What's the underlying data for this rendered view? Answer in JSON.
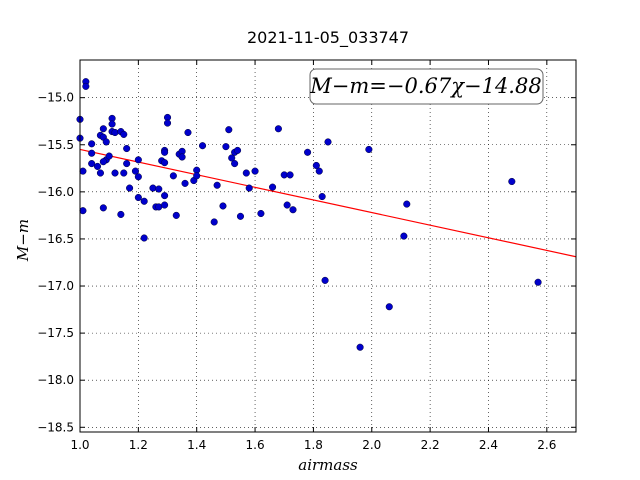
{
  "chart_data": {
    "type": "scatter",
    "title": "2021-11-05_033747",
    "xlabel": "airmass",
    "ylabel": "M−m",
    "xlim": [
      1.0,
      2.7
    ],
    "ylim": [
      -18.55,
      -14.6
    ],
    "y_inverted": true,
    "grid": true,
    "x_ticks": [
      "1.0",
      "1.2",
      "1.4",
      "1.6",
      "1.8",
      "2.0",
      "2.2",
      "2.4",
      "2.6"
    ],
    "x_tick_values": [
      1.0,
      1.2,
      1.4,
      1.6,
      1.8,
      2.0,
      2.2,
      2.4,
      2.6
    ],
    "y_ticks": [
      "−15.0",
      "−15.5",
      "−16.0",
      "−16.5",
      "−17.0",
      "−17.5",
      "−18.0",
      "−18.5"
    ],
    "y_tick_values": [
      -15.0,
      -15.5,
      -16.0,
      -16.5,
      -17.0,
      -17.5,
      -18.0,
      -18.5
    ],
    "fit_label": "M−m=−0.67χ−14.88",
    "fit": {
      "slope": -0.67,
      "intercept": -14.88,
      "color": "#ff0000"
    },
    "point_color": "#0000cc",
    "points": [
      {
        "x": 1.0,
        "y": -15.23
      },
      {
        "x": 1.0,
        "y": -15.43
      },
      {
        "x": 1.02,
        "y": -14.83
      },
      {
        "x": 1.02,
        "y": -14.88
      },
      {
        "x": 1.01,
        "y": -15.78
      },
      {
        "x": 1.01,
        "y": -16.2
      },
      {
        "x": 1.04,
        "y": -15.49
      },
      {
        "x": 1.04,
        "y": -15.59
      },
      {
        "x": 1.04,
        "y": -15.7
      },
      {
        "x": 1.06,
        "y": -15.73
      },
      {
        "x": 1.07,
        "y": -15.8
      },
      {
        "x": 1.07,
        "y": -15.4
      },
      {
        "x": 1.08,
        "y": -15.33
      },
      {
        "x": 1.08,
        "y": -15.42
      },
      {
        "x": 1.09,
        "y": -15.47
      },
      {
        "x": 1.09,
        "y": -15.66
      },
      {
        "x": 1.08,
        "y": -15.68
      },
      {
        "x": 1.08,
        "y": -16.17
      },
      {
        "x": 1.1,
        "y": -15.62
      },
      {
        "x": 1.11,
        "y": -15.22
      },
      {
        "x": 1.11,
        "y": -15.28
      },
      {
        "x": 1.11,
        "y": -15.36
      },
      {
        "x": 1.12,
        "y": -15.37
      },
      {
        "x": 1.12,
        "y": -15.8
      },
      {
        "x": 1.14,
        "y": -15.36
      },
      {
        "x": 1.15,
        "y": -15.39
      },
      {
        "x": 1.14,
        "y": -16.24
      },
      {
        "x": 1.15,
        "y": -15.8
      },
      {
        "x": 1.16,
        "y": -15.7
      },
      {
        "x": 1.16,
        "y": -15.54
      },
      {
        "x": 1.17,
        "y": -15.96
      },
      {
        "x": 1.19,
        "y": -15.78
      },
      {
        "x": 1.2,
        "y": -15.66
      },
      {
        "x": 1.2,
        "y": -15.84
      },
      {
        "x": 1.2,
        "y": -16.06
      },
      {
        "x": 1.22,
        "y": -16.1
      },
      {
        "x": 1.22,
        "y": -16.49
      },
      {
        "x": 1.25,
        "y": -15.96
      },
      {
        "x": 1.26,
        "y": -16.16
      },
      {
        "x": 1.27,
        "y": -15.97
      },
      {
        "x": 1.27,
        "y": -16.16
      },
      {
        "x": 1.28,
        "y": -15.67
      },
      {
        "x": 1.29,
        "y": -15.56
      },
      {
        "x": 1.29,
        "y": -15.58
      },
      {
        "x": 1.29,
        "y": -15.69
      },
      {
        "x": 1.29,
        "y": -16.14
      },
      {
        "x": 1.29,
        "y": -16.04
      },
      {
        "x": 1.3,
        "y": -15.21
      },
      {
        "x": 1.3,
        "y": -15.27
      },
      {
        "x": 1.32,
        "y": -15.83
      },
      {
        "x": 1.33,
        "y": -16.25
      },
      {
        "x": 1.34,
        "y": -15.6
      },
      {
        "x": 1.35,
        "y": -15.57
      },
      {
        "x": 1.35,
        "y": -15.63
      },
      {
        "x": 1.36,
        "y": -15.91
      },
      {
        "x": 1.37,
        "y": -15.37
      },
      {
        "x": 1.39,
        "y": -15.88
      },
      {
        "x": 1.4,
        "y": -15.77
      },
      {
        "x": 1.4,
        "y": -15.83
      },
      {
        "x": 1.42,
        "y": -15.51
      },
      {
        "x": 1.46,
        "y": -16.32
      },
      {
        "x": 1.47,
        "y": -15.93
      },
      {
        "x": 1.49,
        "y": -16.15
      },
      {
        "x": 1.5,
        "y": -15.52
      },
      {
        "x": 1.51,
        "y": -15.34
      },
      {
        "x": 1.52,
        "y": -15.64
      },
      {
        "x": 1.53,
        "y": -15.7
      },
      {
        "x": 1.53,
        "y": -15.58
      },
      {
        "x": 1.54,
        "y": -15.56
      },
      {
        "x": 1.55,
        "y": -16.26
      },
      {
        "x": 1.57,
        "y": -15.8
      },
      {
        "x": 1.58,
        "y": -15.96
      },
      {
        "x": 1.6,
        "y": -15.78
      },
      {
        "x": 1.62,
        "y": -16.23
      },
      {
        "x": 1.66,
        "y": -15.95
      },
      {
        "x": 1.68,
        "y": -15.33
      },
      {
        "x": 1.7,
        "y": -15.82
      },
      {
        "x": 1.71,
        "y": -16.14
      },
      {
        "x": 1.72,
        "y": -15.82
      },
      {
        "x": 1.73,
        "y": -16.19
      },
      {
        "x": 1.78,
        "y": -15.58
      },
      {
        "x": 1.81,
        "y": -15.72
      },
      {
        "x": 1.82,
        "y": -15.78
      },
      {
        "x": 1.83,
        "y": -16.05
      },
      {
        "x": 1.84,
        "y": -16.94
      },
      {
        "x": 1.85,
        "y": -15.47
      },
      {
        "x": 1.96,
        "y": -17.65
      },
      {
        "x": 1.99,
        "y": -15.55
      },
      {
        "x": 2.06,
        "y": -17.22
      },
      {
        "x": 2.11,
        "y": -16.47
      },
      {
        "x": 2.12,
        "y": -16.13
      },
      {
        "x": 2.48,
        "y": -15.89
      },
      {
        "x": 2.57,
        "y": -16.96
      }
    ]
  }
}
